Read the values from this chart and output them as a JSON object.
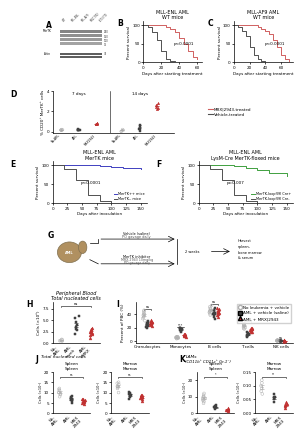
{
  "panelB": {
    "title": "MLL-ENL AML\nWT mice",
    "xlabel": "Days after starting treatment",
    "ylabel": "Percent survival",
    "pvalue": "p<0.0001",
    "line1_color": "#d06060",
    "line2_color": "#505050",
    "line1_x": [
      0,
      5,
      10,
      15,
      20,
      25,
      30,
      35,
      40,
      45,
      50,
      55,
      60
    ],
    "line1_y": [
      100,
      100,
      100,
      100,
      100,
      95,
      90,
      80,
      65,
      50,
      30,
      15,
      10
    ],
    "line2_x": [
      0,
      5,
      10,
      15,
      20,
      25,
      30,
      35,
      40
    ],
    "line2_y": [
      100,
      95,
      80,
      60,
      30,
      10,
      5,
      0,
      0
    ]
  },
  "panelC": {
    "title": "MLL-AF9 AML\nWT mice",
    "xlabel": "Days after starting treatment",
    "ylabel": "Percent survival",
    "pvalue": "p<0.0001",
    "line1_color": "#d06060",
    "line2_color": "#505050",
    "line1_x": [
      0,
      5,
      10,
      15,
      20,
      25,
      30,
      35,
      40,
      45,
      50,
      55,
      60,
      65,
      70
    ],
    "line1_y": [
      100,
      100,
      100,
      100,
      100,
      100,
      95,
      90,
      85,
      75,
      60,
      40,
      20,
      10,
      5
    ],
    "line2_x": [
      0,
      5,
      10,
      15,
      20,
      25,
      30,
      35,
      40
    ],
    "line2_y": [
      100,
      95,
      85,
      70,
      40,
      20,
      10,
      5,
      0
    ]
  },
  "legend_BC": {
    "MRX2943_color": "#d06060",
    "Vehicle_color": "#505050",
    "MRX2943_label": "MRX|2943-treated",
    "Vehicle_label": "Vehicle-treated"
  },
  "panelE": {
    "title": "MLL-ENL AML\nMerTK mice",
    "xlabel": "Days after inoculation",
    "ylabel": "Percent survival",
    "pvalue": "p<0.0001",
    "line1_color": "#4040c0",
    "line2_color": "#505050",
    "line1_label": "MerTK++ mice",
    "line2_label": "MerTK-- mice",
    "line1_x": [
      0,
      20,
      40,
      60,
      80,
      100,
      120,
      150
    ],
    "line1_y": [
      100,
      100,
      100,
      100,
      98,
      95,
      92,
      90
    ],
    "line2_x": [
      0,
      20,
      40,
      60,
      80,
      100
    ],
    "line2_y": [
      100,
      90,
      60,
      20,
      5,
      0
    ]
  },
  "panelF": {
    "title": "MLL-ENL AML\nLysM-Cre MerTK-floxed mice",
    "xlabel": "Days after inoculation",
    "ylabel": "Percent survival",
    "pvalue": "p=0.007",
    "line1_color": "#40a040",
    "line2_color": "#505050",
    "line1_label": "MerTK-loxpfl/fl Cre+",
    "line2_label": "MerTK-loxpfl/fl Cre-",
    "line1_x": [
      0,
      20,
      40,
      60,
      80,
      100,
      120,
      150
    ],
    "line1_y": [
      100,
      100,
      100,
      97,
      93,
      88,
      80,
      72
    ],
    "line2_x": [
      0,
      20,
      40,
      60,
      80,
      100
    ],
    "line2_y": [
      100,
      90,
      60,
      20,
      5,
      0
    ]
  },
  "legend_HIJ": {
    "labels": [
      "No leukemia + vehicle",
      "AML + vehicle (saline)",
      "AML + MRX|2943"
    ],
    "colors": [
      "#b0b0b0",
      "#404040",
      "#c03030"
    ],
    "markers": [
      "o",
      "s",
      "^"
    ]
  },
  "colors_grp": [
    "#b0b0b0",
    "#404040",
    "#c03030"
  ],
  "markers_grp": [
    "o",
    "s",
    "^"
  ],
  "background_color": "#ffffff",
  "fs_axis": 3.5,
  "fs_title": 4.0,
  "fs_tick": 3.0,
  "fs_legend": 3.0,
  "fs_pval": 3.0,
  "fs_label": 5.5
}
